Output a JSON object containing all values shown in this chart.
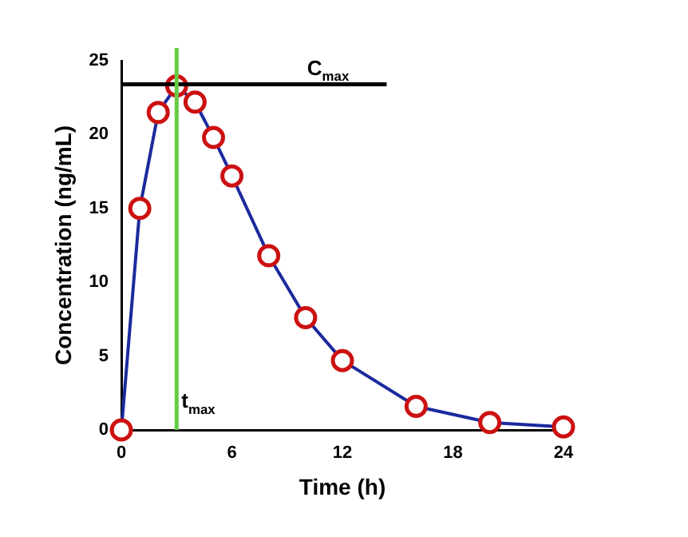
{
  "chart_data": {
    "type": "line",
    "xlabel": "Time (h)",
    "ylabel": "Concentration (ng/mL)",
    "x": [
      0,
      1,
      2,
      3,
      4,
      5,
      6,
      8,
      10,
      12,
      16,
      20,
      24
    ],
    "series": [
      {
        "color": "#1c2a9e",
        "values": [
          0,
          15,
          21.5,
          23.3,
          22.2,
          19.8,
          17.2,
          11.8,
          7.6,
          4.7,
          1.6,
          0.5,
          0.2
        ]
      }
    ],
    "marker": "circle",
    "line_style": "solid",
    "grid": false,
    "legend": false,
    "xlim": [
      0,
      24
    ],
    "xticks": [
      0,
      6,
      12,
      18,
      24
    ],
    "ylim": [
      0,
      25
    ],
    "yticks": [
      0,
      5,
      10,
      15,
      20,
      25
    ],
    "ref_lines": [
      {
        "axis": "y",
        "value": 23.4,
        "label": "C$_{max}$",
        "color": "#000000"
      },
      {
        "axis": "x",
        "value": 3,
        "label": "t$_{max}$",
        "color": "#66cc44"
      }
    ]
  }
}
